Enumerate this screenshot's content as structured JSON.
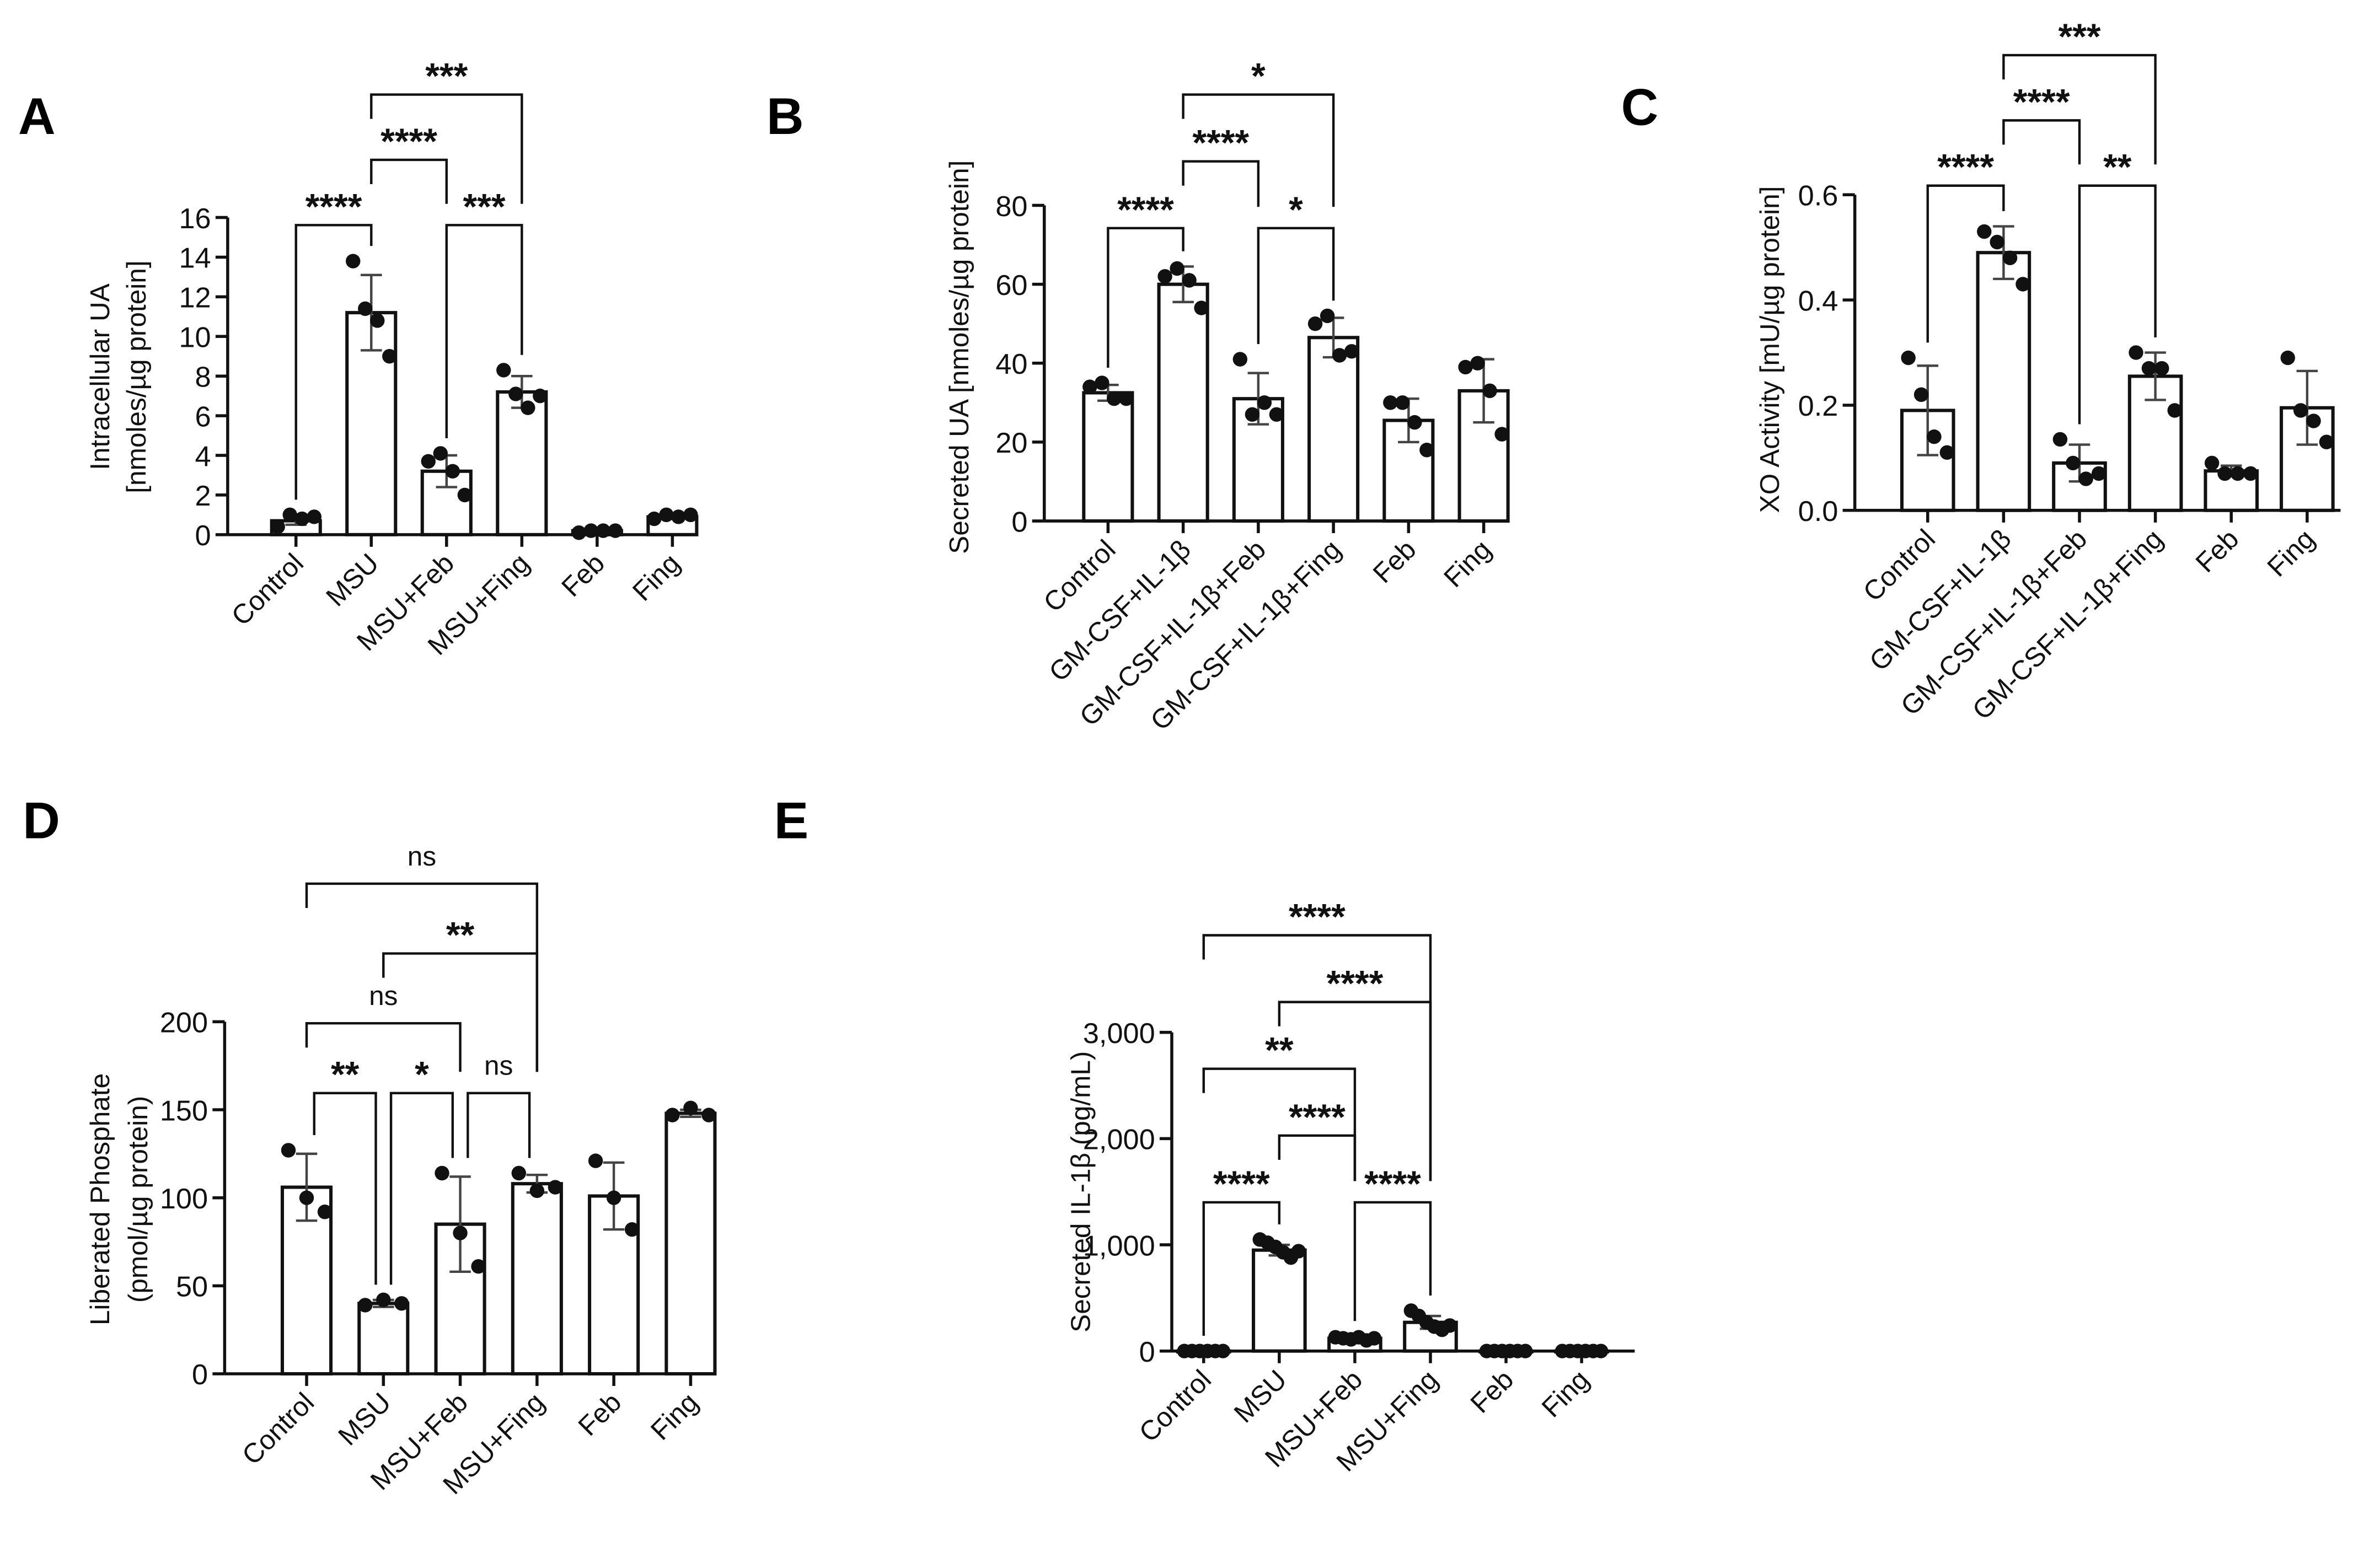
{
  "chart_data": [
    {
      "panel": "A",
      "type": "bar",
      "ylabel": [
        "Intracellular UA",
        "[nmoles/µg protein]"
      ],
      "ylim": [
        0,
        16
      ],
      "yticks": [
        0,
        2,
        4,
        6,
        8,
        10,
        12,
        14,
        16
      ],
      "ytick_labels": [
        "0",
        "2",
        "4",
        "6",
        "8",
        "10",
        "12",
        "14",
        "16"
      ],
      "categories": [
        "Control",
        "MSU",
        "MSU+Feb",
        "MSU+Fing",
        "Feb",
        "Fing"
      ],
      "means": [
        0.7,
        11.2,
        3.2,
        7.2,
        0.2,
        0.9
      ],
      "sd": [
        0.2,
        1.9,
        0.8,
        0.8,
        0.05,
        0.1
      ],
      "points": [
        [
          0.4,
          1.0,
          0.8,
          0.9
        ],
        [
          13.8,
          11.4,
          10.8,
          9.0
        ],
        [
          3.7,
          4.1,
          3.2,
          2.0
        ],
        [
          8.3,
          7.1,
          6.4,
          7.0
        ],
        [
          0.1,
          0.2,
          0.2,
          0.2
        ],
        [
          0.8,
          1.0,
          0.9,
          1.0
        ]
      ],
      "comparisons": [
        {
          "from": 0,
          "to": 1,
          "label": "****"
        },
        {
          "from": 2,
          "to": 3,
          "label": "***"
        },
        {
          "from": 1,
          "to": 2,
          "label": "****"
        },
        {
          "from": 1,
          "to": 3,
          "label": "***"
        }
      ]
    },
    {
      "panel": "B",
      "type": "bar",
      "ylabel": [
        "Secreted UA [nmoles/µg protein]"
      ],
      "ylim": [
        0,
        80
      ],
      "yticks": [
        0,
        20,
        40,
        60,
        80
      ],
      "ytick_labels": [
        "0",
        "20",
        "40",
        "60",
        "80"
      ],
      "categories": [
        "Control",
        "GM-CSF+IL-1β",
        "GM-CSF+IL-1β+Feb",
        "GM-CSF+IL-1β+Fing",
        "Feb",
        "Fing"
      ],
      "means": [
        32.5,
        60,
        31,
        46.5,
        25.5,
        33
      ],
      "sd": [
        2,
        4.5,
        6.5,
        5,
        5.5,
        8
      ],
      "points": [
        [
          34,
          35,
          31,
          31
        ],
        [
          62,
          64,
          61,
          54
        ],
        [
          41,
          27,
          30,
          27
        ],
        [
          50,
          52,
          42,
          43
        ],
        [
          30,
          30,
          25,
          18
        ],
        [
          39,
          40,
          33,
          22
        ]
      ],
      "comparisons": [
        {
          "from": 0,
          "to": 1,
          "label": "****"
        },
        {
          "from": 2,
          "to": 3,
          "label": "*"
        },
        {
          "from": 1,
          "to": 2,
          "label": "****"
        },
        {
          "from": 1,
          "to": 3,
          "label": "*"
        }
      ]
    },
    {
      "panel": "C",
      "type": "bar",
      "ylabel": [
        "XO Activity [mU/µg protein]"
      ],
      "ylim": [
        0,
        0.6
      ],
      "yticks": [
        0,
        0.2,
        0.4,
        0.6
      ],
      "ytick_labels": [
        "0.0",
        "0.2",
        "0.4",
        "0.6"
      ],
      "categories": [
        "Control",
        "GM-CSF+IL-1β",
        "GM-CSF+IL-1β+Feb",
        "GM-CSF+IL-1β+Fing",
        "Feb",
        "Fing"
      ],
      "means": [
        0.19,
        0.49,
        0.09,
        0.255,
        0.075,
        0.195
      ],
      "sd": [
        0.085,
        0.05,
        0.035,
        0.045,
        0.01,
        0.07
      ],
      "points": [
        [
          0.29,
          0.22,
          0.14,
          0.11
        ],
        [
          0.53,
          0.51,
          0.48,
          0.43
        ],
        [
          0.135,
          0.09,
          0.06,
          0.07
        ],
        [
          0.3,
          0.27,
          0.27,
          0.19
        ],
        [
          0.09,
          0.07,
          0.07,
          0.07
        ],
        [
          0.29,
          0.19,
          0.17,
          0.13
        ]
      ],
      "comparisons": [
        {
          "from": 0,
          "to": 1,
          "label": "****"
        },
        {
          "from": 2,
          "to": 3,
          "label": "**"
        },
        {
          "from": 1,
          "to": 2,
          "label": "****"
        },
        {
          "from": 1,
          "to": 3,
          "label": "***"
        }
      ]
    },
    {
      "panel": "D",
      "type": "bar",
      "ylabel": [
        "Liberated Phosphate",
        "(pmol/µg protein)"
      ],
      "ylim": [
        0,
        200
      ],
      "yticks": [
        0,
        50,
        100,
        150,
        200
      ],
      "ytick_labels": [
        "0",
        "50",
        "100",
        "150",
        "200"
      ],
      "categories": [
        "Control",
        "MSU",
        "MSU+Feb",
        "MSU+Fing",
        "Feb",
        "Fing"
      ],
      "means": [
        106,
        40,
        85,
        108,
        101,
        148
      ],
      "sd": [
        19,
        2,
        27,
        5,
        19,
        2
      ],
      "points": [
        [
          127,
          100,
          92
        ],
        [
          39,
          42,
          40
        ],
        [
          114,
          80,
          61
        ],
        [
          114,
          104,
          106
        ],
        [
          121,
          100,
          82
        ],
        [
          147,
          151,
          147
        ]
      ],
      "comparisons": [
        {
          "from": 0,
          "to": 1,
          "label": "**"
        },
        {
          "from": 1,
          "to": 2,
          "label": "*"
        },
        {
          "from": 2,
          "to": 3,
          "label": "ns"
        },
        {
          "from": 0,
          "to": 2,
          "label": "ns"
        },
        {
          "from": 1,
          "to": 3,
          "label": "**"
        },
        {
          "from": 0,
          "to": 3,
          "label": "ns"
        }
      ]
    },
    {
      "panel": "E",
      "type": "bar",
      "ylabel": [
        "Secreted IL-1β (pg/mL)"
      ],
      "ylim": [
        0,
        3000
      ],
      "yticks": [
        0,
        1000,
        2000,
        3000
      ],
      "ytick_labels": [
        "0",
        "1,000",
        "2,000",
        "3,000"
      ],
      "categories": [
        "Control",
        "MSU",
        "MSU+Feb",
        "MSU+Fing",
        "Feb",
        "Fing"
      ],
      "means": [
        0,
        950,
        120,
        270,
        0,
        0
      ],
      "sd": [
        0,
        50,
        20,
        60,
        0,
        0
      ],
      "points": [
        [
          0,
          0,
          0,
          0,
          0,
          0
        ],
        [
          1050,
          1020,
          980,
          930,
          880,
          940
        ],
        [
          130,
          120,
          110,
          130,
          100,
          120
        ],
        [
          380,
          330,
          270,
          230,
          200,
          240
        ],
        [
          0,
          0,
          0,
          0,
          0,
          0
        ],
        [
          0,
          0,
          0,
          0,
          0,
          0
        ]
      ],
      "comparisons": [
        {
          "from": 0,
          "to": 1,
          "label": "****"
        },
        {
          "from": 2,
          "to": 3,
          "label": "****"
        },
        {
          "from": 1,
          "to": 2,
          "label": "****"
        },
        {
          "from": 0,
          "to": 2,
          "label": "**"
        },
        {
          "from": 1,
          "to": 3,
          "label": "****"
        },
        {
          "from": 0,
          "to": 3,
          "label": "****"
        }
      ]
    }
  ]
}
